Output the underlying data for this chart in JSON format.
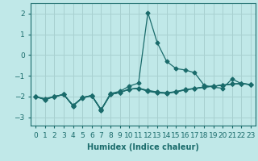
{
  "title": "",
  "xlabel": "Humidex (Indice chaleur)",
  "background_color": "#c0e8e8",
  "grid_color": "#a8d0d0",
  "line_color": "#1a6b6b",
  "x_values": [
    0,
    1,
    2,
    3,
    4,
    5,
    6,
    7,
    8,
    9,
    10,
    11,
    12,
    13,
    14,
    15,
    16,
    17,
    18,
    19,
    20,
    21,
    22,
    23
  ],
  "series": [
    [
      -2.0,
      -2.15,
      -2.0,
      -1.9,
      -2.45,
      -2.05,
      -1.95,
      -2.65,
      -1.85,
      -1.75,
      -1.5,
      -1.35,
      2.05,
      0.6,
      -0.3,
      -0.65,
      -0.72,
      -0.85,
      -1.45,
      -1.55,
      -1.6,
      -1.15,
      -1.38,
      -1.42
    ],
    [
      -2.0,
      -2.15,
      -2.0,
      -1.9,
      -2.45,
      -2.05,
      -1.95,
      -2.65,
      -1.9,
      -1.8,
      -1.65,
      -1.6,
      -1.75,
      -1.82,
      -1.85,
      -1.78,
      -1.68,
      -1.62,
      -1.55,
      -1.5,
      -1.45,
      -1.4,
      -1.38,
      -1.42
    ],
    [
      -2.02,
      -2.1,
      -2.0,
      -1.9,
      -2.42,
      -2.05,
      -1.95,
      -2.62,
      -1.9,
      -1.8,
      -1.65,
      -1.6,
      -1.7,
      -1.78,
      -1.82,
      -1.76,
      -1.66,
      -1.61,
      -1.54,
      -1.5,
      -1.45,
      -1.4,
      -1.37,
      -1.42
    ],
    [
      -2.0,
      -2.12,
      -2.0,
      -1.9,
      -2.44,
      -2.07,
      -1.97,
      -2.64,
      -1.9,
      -1.8,
      -1.65,
      -1.6,
      -1.72,
      -1.8,
      -1.83,
      -1.77,
      -1.67,
      -1.61,
      -1.54,
      -1.5,
      -1.45,
      -1.4,
      -1.37,
      -1.42
    ]
  ],
  "xlim": [
    -0.5,
    23.5
  ],
  "ylim": [
    -3.4,
    2.5
  ],
  "yticks": [
    -3,
    -2,
    -1,
    0,
    1,
    2
  ],
  "xtick_labels": [
    "0",
    "1",
    "2",
    "3",
    "4",
    "5",
    "6",
    "7",
    "8",
    "9",
    "10",
    "11",
    "12",
    "13",
    "14",
    "15",
    "16",
    "17",
    "18",
    "19",
    "20",
    "21",
    "22",
    "23"
  ],
  "marker": "D",
  "markersize": 2.5,
  "linewidth": 0.9,
  "xlabel_fontsize": 7,
  "tick_fontsize": 6.5
}
